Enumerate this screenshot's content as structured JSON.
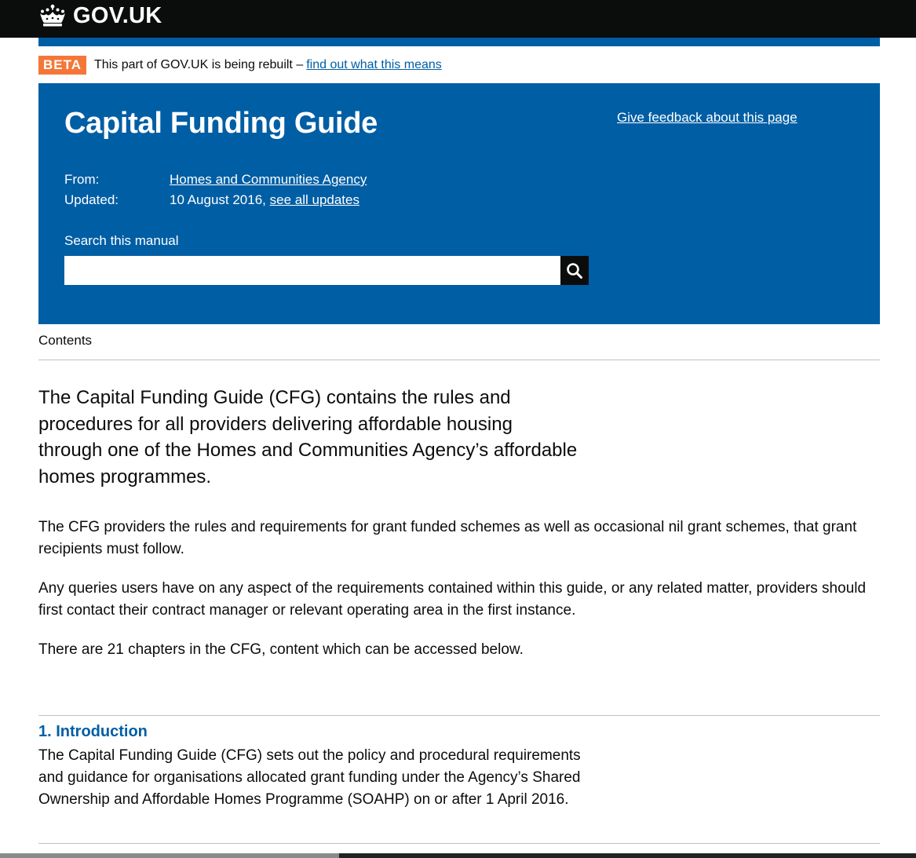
{
  "header": {
    "logo_text": "GOV.UK",
    "logo_icon": "crown-icon"
  },
  "phase_banner": {
    "tag": "BETA",
    "text": "This part of GOV.UK is being rebuilt –",
    "link": "find out what this means"
  },
  "hero": {
    "title": "Capital Funding Guide",
    "feedback_link": "Give feedback about this page",
    "from_label": "From:",
    "from_value": "Homes and Communities Agency",
    "updated_label": "Updated:",
    "updated_date": "10 August 2016,",
    "updated_link": "see all updates",
    "search_label": "Search this manual",
    "search_value": "",
    "search_icon": "search-icon"
  },
  "contents": {
    "label": "Contents"
  },
  "intro": {
    "lead": "The Capital Funding Guide (CFG) contains the rules and procedures for all providers delivering affordable housing through one of the Homes and Communities Agency’s affordable homes programmes.",
    "paragraphs": [
      "The CFG providers the rules and requirements for grant funded schemes as well as occasional nil grant schemes, that grant recipients must follow.",
      "Any queries users have on any aspect of the requirements contained within this guide, or any related matter, providers should first contact their contract manager or relevant operating area in the first instance.",
      "There are 21 chapters in the CFG, content which can be accessed below."
    ]
  },
  "chapters": [
    {
      "title": "1. Introduction",
      "description": "The Capital Funding Guide (CFG) sets out the policy and procedural requirements and guidance for organisations allocated grant funding under the Agency’s Shared Ownership and Affordable Homes Programme (SOAHP) on or after 1 April 2016."
    }
  ],
  "colors": {
    "header_bg": "#0b0c0c",
    "brand_blue": "#005ea5",
    "beta_orange": "#f47738",
    "rule_grey": "#bfc1c3"
  }
}
